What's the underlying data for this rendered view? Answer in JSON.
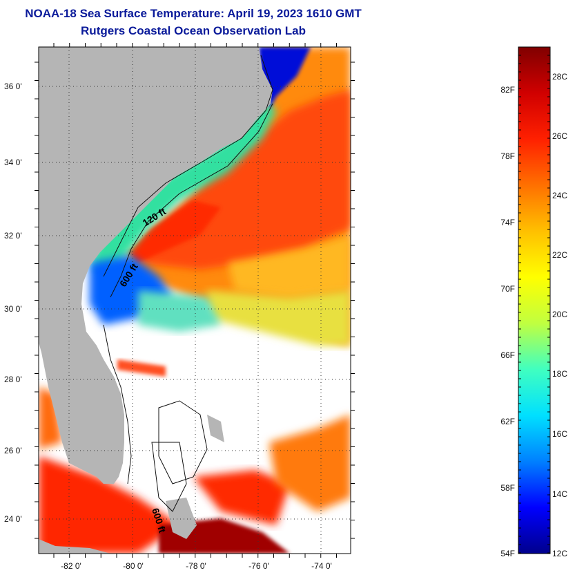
{
  "title": {
    "line1": "NOAA-18 Sea Surface Temperature:  April 19, 2023 1610 GMT",
    "line2": "Rutgers Coastal Ocean Observation Lab"
  },
  "map": {
    "lat_labels": [
      "36 0'",
      "34 0'",
      "32 0'",
      "30 0'",
      "28 0'",
      "26 0'",
      "24 0'"
    ],
    "lon_labels": [
      "-82 0'",
      "-80 0'",
      "-78 0'",
      "-76 0'",
      "-74 0'"
    ],
    "contour_labels": [
      "120 ft",
      "600 ft",
      "600 ft"
    ],
    "colors": {
      "land": "#b5b5b5",
      "no_data": "#ffffff",
      "grid": "#333333"
    }
  },
  "colorbar": {
    "fahrenheit_labels": [
      "82F",
      "78F",
      "74F",
      "70F",
      "66F",
      "62F",
      "58F",
      "54F"
    ],
    "celsius_labels": [
      "28C",
      "26C",
      "24C",
      "22C",
      "20C",
      "18C",
      "16C",
      "14C",
      "12C"
    ],
    "gradient_colors": [
      "#00008c",
      "#0000ff",
      "#0080ff",
      "#00e0ff",
      "#40ffc0",
      "#c0ff40",
      "#ffff00",
      "#ffc000",
      "#ff7000",
      "#ff2000",
      "#d00000",
      "#800000"
    ]
  }
}
